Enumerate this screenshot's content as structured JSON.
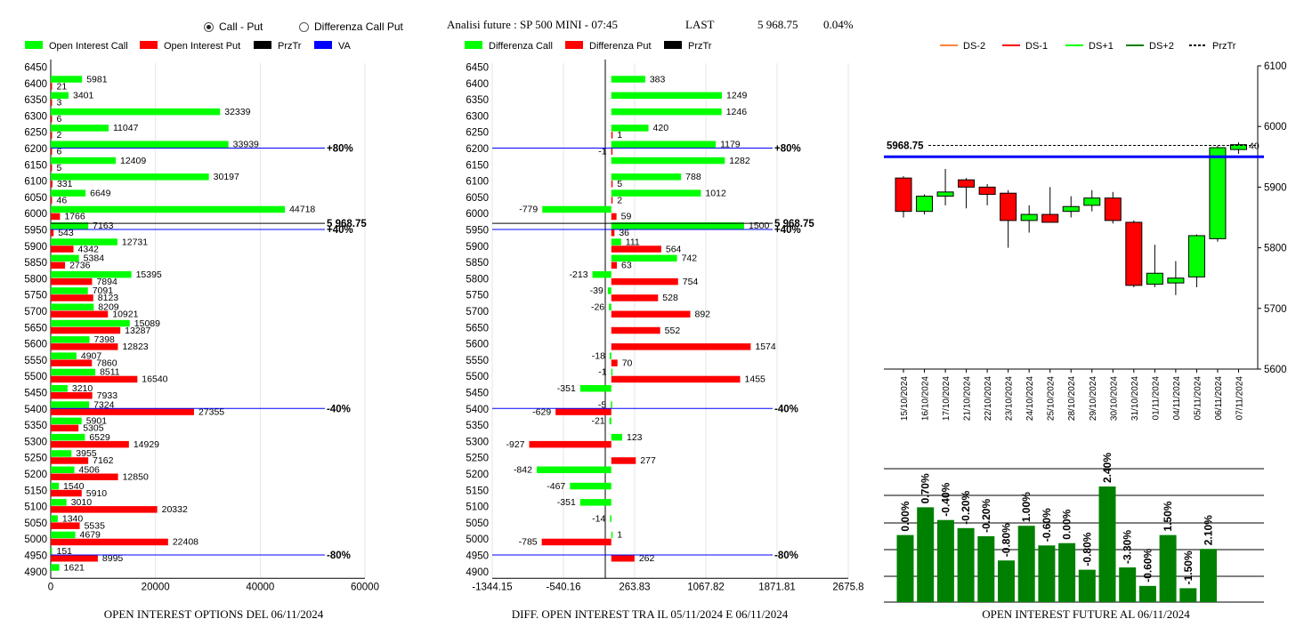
{
  "header": {
    "radio_call_put": "Call - Put",
    "radio_diff": "Differenza Call Put",
    "radio_selected": "call_put",
    "analysis_label": "Analisi future : SP 500 MINI - 07:45",
    "last_label": "LAST",
    "last_value": "5 968.75",
    "last_change": "0.04%"
  },
  "colors": {
    "green": "#00ff00",
    "red": "#ff0000",
    "black": "#000000",
    "blue": "#0000ff",
    "dark_green": "#008000",
    "orange": "#ff8040"
  },
  "panel1": {
    "legend": [
      {
        "label": "Open Interest Call",
        "color": "#00ff00"
      },
      {
        "label": "Open Interest Put",
        "color": "#ff0000"
      },
      {
        "label": "PrzTr",
        "color": "#000000"
      },
      {
        "label": "VA",
        "color": "#0000ff"
      }
    ],
    "footer": "OPEN INTEREST OPTIONS DEL 06/11/2024"
  },
  "panel2": {
    "legend": [
      {
        "label": "Differenza Call",
        "color": "#00ff00"
      },
      {
        "label": "Differenza Put",
        "color": "#ff0000"
      },
      {
        "label": "PrzTr",
        "color": "#000000"
      }
    ],
    "footer": "DIFF. OPEN INTEREST TRA IL 05/11/2024 E 06/11/2024"
  },
  "panel3": {
    "legend": [
      {
        "label": "DS-2",
        "color": "#ff8040",
        "dash": false
      },
      {
        "label": "DS-1",
        "color": "#ff0000",
        "dash": false
      },
      {
        "label": "DS+1",
        "color": "#00ff00",
        "dash": false
      },
      {
        "label": "DS+2",
        "color": "#008000",
        "dash": false
      },
      {
        "label": "PrzTr",
        "color": "#000000",
        "dash": true
      }
    ],
    "footer": "OPEN INTEREST FUTURE AL 06/11/2024"
  },
  "chart_data": [
    {
      "type": "bar",
      "orientation": "horizontal",
      "categories": [
        "6450",
        "6400",
        "6350",
        "6300",
        "6250",
        "6200",
        "6150",
        "6100",
        "6050",
        "6000",
        "5950",
        "5900",
        "5850",
        "5800",
        "5750",
        "5700",
        "5650",
        "5600",
        "5550",
        "5500",
        "5450",
        "5400",
        "5350",
        "5300",
        "5250",
        "5200",
        "5150",
        "5100",
        "5050",
        "5000",
        "4950",
        "4900"
      ],
      "series": [
        {
          "name": "Open Interest Call",
          "values": [
            null,
            5981,
            3401,
            32339,
            11047,
            33939,
            12409,
            30197,
            6649,
            44718,
            7163,
            12731,
            5384,
            15395,
            7091,
            8209,
            15089,
            7398,
            4907,
            8511,
            3210,
            7324,
            5901,
            6529,
            3955,
            4506,
            1540,
            3010,
            1340,
            4679,
            151,
            1621
          ]
        },
        {
          "name": "Open Interest Put",
          "values": [
            null,
            21,
            3,
            6,
            2,
            6,
            5,
            331,
            46,
            1766,
            543,
            4342,
            2736,
            7894,
            8123,
            10921,
            13287,
            12823,
            7860,
            16540,
            7933,
            27355,
            5305,
            14929,
            7162,
            12850,
            5910,
            20332,
            5535,
            22408,
            8995,
            null
          ]
        }
      ],
      "xlim": [
        0,
        60000
      ],
      "x_ticks": [
        "0",
        "20000",
        "40000",
        "60000"
      ],
      "levels": [
        {
          "label": "+80%",
          "price": 6200,
          "color": "#0000ff"
        },
        {
          "label": "5 968.75",
          "price": 5968.75,
          "color": "#000000"
        },
        {
          "label": "+40%",
          "price": 5950,
          "color": "#0000ff"
        },
        {
          "label": "-40%",
          "price": 5400,
          "color": "#0000ff"
        },
        {
          "label": "-80%",
          "price": 4950,
          "color": "#0000ff"
        }
      ]
    },
    {
      "type": "bar",
      "orientation": "horizontal",
      "categories": [
        "6450",
        "6400",
        "6350",
        "6300",
        "6250",
        "6200",
        "6150",
        "6100",
        "6050",
        "6000",
        "5950",
        "5900",
        "5850",
        "5800",
        "5750",
        "5700",
        "5650",
        "5600",
        "5550",
        "5500",
        "5450",
        "5400",
        "5350",
        "5300",
        "5250",
        "5200",
        "5150",
        "5100",
        "5050",
        "5000",
        "4950",
        "4900"
      ],
      "series": [
        {
          "name": "Differenza Call",
          "values": [
            null,
            383,
            1249,
            1246,
            420,
            1179,
            1282,
            788,
            1012,
            -779,
            1500,
            111,
            742,
            -213,
            -39,
            -26,
            null,
            null,
            -18,
            -1,
            -351,
            -5,
            -21,
            123,
            null,
            -842,
            -467,
            -351,
            -14,
            1,
            null,
            null
          ]
        },
        {
          "name": "Differenza Put",
          "values": [
            null,
            null,
            null,
            null,
            1,
            -1,
            null,
            5,
            2,
            59,
            36,
            564,
            63,
            754,
            528,
            892,
            552,
            1574,
            70,
            1455,
            null,
            -629,
            null,
            -927,
            277,
            null,
            null,
            null,
            null,
            -785,
            262,
            null
          ]
        }
      ],
      "xlim": [
        -1344.15,
        2675.8
      ],
      "x_ticks": [
        "-1344.15",
        "-540.16",
        "263.83",
        "1067.82",
        "1871.81",
        "2675.8"
      ],
      "levels": [
        {
          "label": "+80%",
          "price": 6200,
          "color": "#0000ff"
        },
        {
          "label": "5 968.75",
          "price": 5968.75,
          "color": "#000000"
        },
        {
          "label": "+40%",
          "price": 5950,
          "color": "#0000ff"
        },
        {
          "label": "-40%",
          "price": 5400,
          "color": "#0000ff"
        },
        {
          "label": "-80%",
          "price": 4950,
          "color": "#0000ff"
        }
      ]
    },
    {
      "type": "candlestick",
      "dates": [
        "15/10/2024",
        "16/10/2024",
        "17/10/2024",
        "21/10/2024",
        "22/10/2024",
        "23/10/2024",
        "24/10/2024",
        "25/10/2024",
        "28/10/2024",
        "29/10/2024",
        "30/10/2024",
        "31/10/2024",
        "01/11/2024",
        "04/11/2024",
        "05/11/2024",
        "06/11/2024",
        "07/11/2024"
      ],
      "ohlc": [
        [
          5915,
          5918,
          5850,
          5860
        ],
        [
          5860,
          5888,
          5855,
          5885
        ],
        [
          5885,
          5930,
          5870,
          5892
        ],
        [
          5912,
          5915,
          5865,
          5900
        ],
        [
          5900,
          5905,
          5870,
          5888
        ],
        [
          5890,
          5895,
          5800,
          5845
        ],
        [
          5845,
          5870,
          5825,
          5855
        ],
        [
          5855,
          5900,
          5845,
          5842
        ],
        [
          5860,
          5885,
          5850,
          5868
        ],
        [
          5870,
          5895,
          5860,
          5882
        ],
        [
          5882,
          5892,
          5840,
          5845
        ],
        [
          5842,
          5845,
          5735,
          5738
        ],
        [
          5740,
          5805,
          5735,
          5758
        ],
        [
          5742,
          5778,
          5722,
          5750
        ],
        [
          5752,
          5822,
          5735,
          5820
        ],
        [
          5815,
          5968,
          5810,
          5965
        ],
        [
          5962,
          5974,
          5955,
          5970
        ]
      ],
      "ylim": [
        5600,
        6100
      ],
      "y_ticks": [
        "5600",
        "5700",
        "5800",
        "5900",
        "6000",
        "6100"
      ],
      "last_price": 5968.75,
      "last_label": "5968.75",
      "blue_level": 5950,
      "end_label": "40"
    },
    {
      "type": "bar",
      "categories": [
        "15/10/2024",
        "16/10/2024",
        "17/10/2024",
        "21/10/2024",
        "22/10/2024",
        "23/10/2024",
        "24/10/2024",
        "25/10/2024",
        "28/10/2024",
        "29/10/2024",
        "30/10/2024",
        "31/10/2024",
        "01/11/2024",
        "04/11/2024",
        "05/11/2024",
        "06/11/2024",
        "07/11/2024"
      ],
      "values": [
        58,
        82,
        71,
        64,
        57,
        36,
        66,
        49,
        51,
        28,
        100,
        30,
        14,
        58,
        12,
        46
      ],
      "labels": [
        "0.00%",
        "0.70%",
        "-0.40%",
        "-0.20%",
        "-0.20%",
        "-0.80%",
        "1.00%",
        "-0.60%",
        "0.00%",
        "-0.80%",
        "2.40%",
        "-3.30%",
        "-0.60%",
        "1.50%",
        "-1.50%",
        "2.10%"
      ]
    }
  ]
}
